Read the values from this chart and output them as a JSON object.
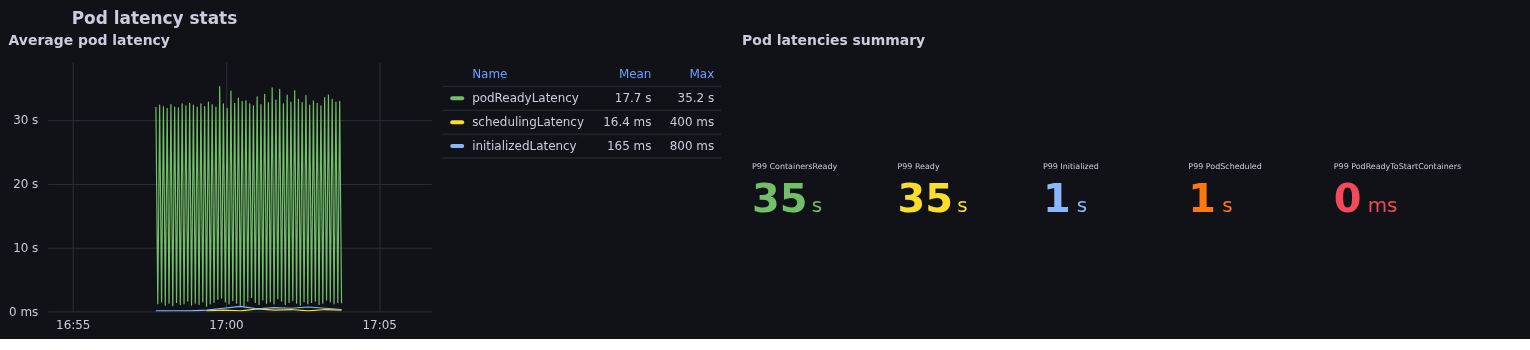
{
  "chart_data": [
    {
      "type": "line",
      "title": "Average pod latency",
      "annotations": [
        "Pod latency stats",
        "Name",
        "Mean",
        "Max",
        "17.7 s",
        "35.2 s",
        "16.4 ms",
        "400 ms",
        "165 ms",
        "800 ms"
      ],
      "xlim": [
        16.9031,
        17.1117
      ],
      "xticks": [
        {
          "value": 16.91667,
          "label": "16:55"
        },
        {
          "value": 17.0,
          "label": "17:00"
        },
        {
          "value": 17.08333,
          "label": "17:05"
        }
      ],
      "ylim": [
        0,
        39
      ],
      "yticks": [
        {
          "value": 0,
          "label": "0 ms"
        },
        {
          "value": 10,
          "label": "10 s"
        },
        {
          "value": 20,
          "label": "20 s"
        },
        {
          "value": 30,
          "label": "30 s"
        }
      ],
      "grid": true,
      "legend": "right",
      "series": [
        {
          "name": "podReadyLatency",
          "color": "#73bf69",
          "x": [
            16.9619,
            16.96292,
            16.96394,
            16.96496,
            16.96598,
            16.967,
            16.96802,
            16.96904,
            16.97006,
            16.97108,
            16.9721,
            16.97312,
            16.97414,
            16.97516,
            16.97618,
            16.9772,
            16.97822,
            16.97924,
            16.98026,
            16.98128,
            16.9823,
            16.98332,
            16.98434,
            16.98536,
            16.98638,
            16.9874,
            16.98842,
            16.98944,
            16.99046,
            16.99148,
            16.9925,
            16.99352,
            16.99454,
            16.99556,
            16.99658,
            16.9976,
            16.99862,
            16.99964,
            17.00066,
            17.00168,
            17.0027,
            17.00372,
            17.00474,
            17.00576,
            17.00678,
            17.0078,
            17.00882,
            17.00984,
            17.01086,
            17.01188,
            17.0129,
            17.01392,
            17.01494,
            17.01596,
            17.01698,
            17.018,
            17.01902,
            17.02004,
            17.02106,
            17.02208,
            17.0231,
            17.02412,
            17.02514,
            17.02616,
            17.02718,
            17.0282,
            17.02922,
            17.03024,
            17.03126,
            17.03228,
            17.0333,
            17.03432,
            17.03534,
            17.03636,
            17.03738,
            17.0384,
            17.03942,
            17.04044,
            17.04146,
            17.04248,
            17.0435,
            17.04452,
            17.04554,
            17.04656,
            17.04758,
            17.0486,
            17.04962,
            17.05064,
            17.05166,
            17.05268,
            17.0537,
            17.05472,
            17.05574,
            17.05676,
            17.05778,
            17.0588,
            17.05982,
            17.06084,
            17.06186,
            17.06288
          ],
          "values": [
            32,
            1.2,
            32.3,
            1.5,
            32.1,
            1,
            31.8,
            1.3,
            32.4,
            0.9,
            32,
            1.4,
            31.9,
            1.1,
            32.5,
            1.2,
            32.2,
            1.6,
            32.6,
            1,
            32.3,
            1.3,
            32,
            1.1,
            32.5,
            1.5,
            32.1,
            0.8,
            32.8,
            1.2,
            32.4,
            1.4,
            32,
            1.9,
            35.2,
            2.1,
            32.5,
            1.5,
            31.8,
            1.2,
            34.5,
            1.7,
            32.6,
            1.3,
            33.4,
            1,
            32.9,
            0.9,
            33,
            1.6,
            32.5,
            2.2,
            32.2,
            1.4,
            33.6,
            1.1,
            32.4,
            1.8,
            34,
            1.3,
            32.7,
            1.5,
            35,
            1.2,
            33.1,
            2,
            34.8,
            1.6,
            32.5,
            1.1,
            33.9,
            1.4,
            32.8,
            1.7,
            34.6,
            1.3,
            33.2,
            1,
            32.7,
            1.5,
            33.8,
            1.2,
            32.3,
            1.4,
            33,
            1.6,
            32.6,
            1.1,
            32.2,
            1.3,
            33.5,
            1.8,
            33.9,
            1.5,
            33.2,
            1.2,
            32.8,
            1.4,
            32.9,
            1.3
          ]
        },
        {
          "name": "schedulingLatency",
          "color": "#fade2a",
          "x": [
            16.9895,
            16.9987,
            17.0079,
            17.0171,
            17.0263,
            17.0355,
            17.0447,
            17.0539,
            17.0629
          ],
          "values": [
            0.1,
            0.2,
            0.1,
            0.4,
            0.2,
            0.3,
            0.1,
            0.3,
            0.2
          ]
        },
        {
          "name": "initializedLatency",
          "color": "#8ab8ff",
          "x": [
            16.9619,
            16.9711,
            16.9803,
            16.9895,
            16.9987,
            17.0079,
            17.0171,
            17.0263,
            17.0355,
            17.0447,
            17.0539,
            17.0629
          ],
          "values": [
            0.1,
            0.1,
            0.1,
            0.2,
            0.5,
            0.8,
            0.4,
            0.6,
            0.5,
            0.7,
            0.5,
            0.3
          ]
        }
      ]
    },
    {
      "type": "other",
      "title": "Pod latencies summary",
      "categories": [
        "P99 ContainersReady",
        "P99 Ready",
        "P99 Initialized",
        "P99 PodScheduled",
        "P99 PodReadyToStartContainers"
      ],
      "values": [
        35,
        35,
        1,
        1,
        0
      ],
      "data_labels": true,
      "annotations": [
        "s",
        "s",
        "s",
        "s",
        "ms"
      ],
      "colors": [
        "#73bf69",
        "#fade2a",
        "#8ab8ff",
        "#ff780a",
        "#f2495c"
      ]
    }
  ]
}
